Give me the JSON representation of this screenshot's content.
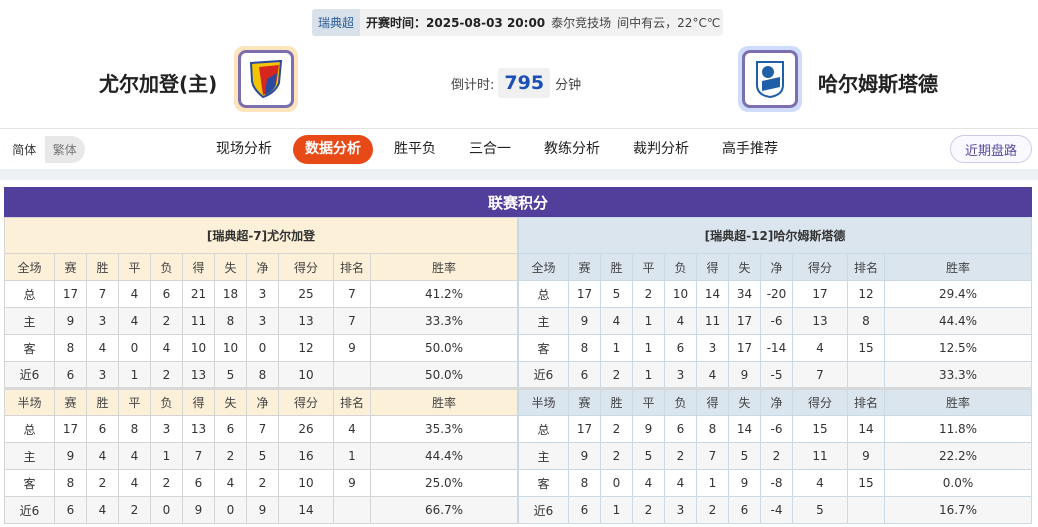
{
  "match": {
    "league": "瑞典超",
    "kickoff": "开赛时间：2025-08-03 20:00",
    "venue": "泰尔竞技场",
    "weather": "间中有云，22°C℃",
    "home_team": "尤尔加登(主)",
    "away_team": "哈尔姆斯塔德",
    "countdown_label": "倒计时:",
    "countdown_value": "795",
    "countdown_unit": "分钟",
    "home_logo_color": "#fce4bd",
    "away_logo_color": "#cfdcfb"
  },
  "nav": {
    "lang_simplified": "简体",
    "lang_traditional": "繁体",
    "tabs": [
      "现场分析",
      "数据分析",
      "胜平负",
      "三合一",
      "教练分析",
      "裁判分析",
      "高手推荐"
    ],
    "active_tab": "数据分析",
    "recent_button": "近期盘路",
    "accent": "#e84a17"
  },
  "standings": {
    "title": "联赛积分",
    "header_color": "#523f9c",
    "home": {
      "title": "[瑞典超-7]尤尔加登",
      "full_header": [
        "全场",
        "赛",
        "胜",
        "平",
        "负",
        "得",
        "失",
        "净",
        "得分",
        "排名",
        "胜率"
      ],
      "full_rows": [
        [
          "总",
          "17",
          "7",
          "4",
          "6",
          "21",
          "18",
          "3",
          "25",
          "7",
          "41.2%"
        ],
        [
          "主",
          "9",
          "3",
          "4",
          "2",
          "11",
          "8",
          "3",
          "13",
          "7",
          "33.3%"
        ],
        [
          "客",
          "8",
          "4",
          "0",
          "4",
          "10",
          "10",
          "0",
          "12",
          "9",
          "50.0%"
        ],
        [
          "近6",
          "6",
          "3",
          "1",
          "2",
          "13",
          "5",
          "8",
          "10",
          "",
          "50.0%"
        ]
      ],
      "half_header": [
        "半场",
        "赛",
        "胜",
        "平",
        "负",
        "得",
        "失",
        "净",
        "得分",
        "排名",
        "胜率"
      ],
      "half_rows": [
        [
          "总",
          "17",
          "6",
          "8",
          "3",
          "13",
          "6",
          "7",
          "26",
          "4",
          "35.3%"
        ],
        [
          "主",
          "9",
          "4",
          "4",
          "1",
          "7",
          "2",
          "5",
          "16",
          "1",
          "44.4%"
        ],
        [
          "客",
          "8",
          "2",
          "4",
          "2",
          "6",
          "4",
          "2",
          "10",
          "9",
          "25.0%"
        ],
        [
          "近6",
          "6",
          "4",
          "2",
          "0",
          "9",
          "0",
          "9",
          "14",
          "",
          "66.7%"
        ]
      ]
    },
    "away": {
      "title": "[瑞典超-12]哈尔姆斯塔德",
      "full_header": [
        "全场",
        "赛",
        "胜",
        "平",
        "负",
        "得",
        "失",
        "净",
        "得分",
        "排名",
        "胜率"
      ],
      "full_rows": [
        [
          "总",
          "17",
          "5",
          "2",
          "10",
          "14",
          "34",
          "-20",
          "17",
          "12",
          "29.4%"
        ],
        [
          "主",
          "9",
          "4",
          "1",
          "4",
          "11",
          "17",
          "-6",
          "13",
          "8",
          "44.4%"
        ],
        [
          "客",
          "8",
          "1",
          "1",
          "6",
          "3",
          "17",
          "-14",
          "4",
          "15",
          "12.5%"
        ],
        [
          "近6",
          "6",
          "2",
          "1",
          "3",
          "4",
          "9",
          "-5",
          "7",
          "",
          "33.3%"
        ]
      ],
      "half_header": [
        "半场",
        "赛",
        "胜",
        "平",
        "负",
        "得",
        "失",
        "净",
        "得分",
        "排名",
        "胜率"
      ],
      "half_rows": [
        [
          "总",
          "17",
          "2",
          "9",
          "6",
          "8",
          "14",
          "-6",
          "15",
          "14",
          "11.8%"
        ],
        [
          "主",
          "9",
          "2",
          "5",
          "2",
          "7",
          "5",
          "2",
          "11",
          "9",
          "22.2%"
        ],
        [
          "客",
          "8",
          "0",
          "4",
          "4",
          "1",
          "9",
          "-8",
          "4",
          "15",
          "0.0%"
        ],
        [
          "近6",
          "6",
          "1",
          "2",
          "3",
          "2",
          "6",
          "-4",
          "5",
          "",
          "16.7%"
        ]
      ]
    }
  }
}
